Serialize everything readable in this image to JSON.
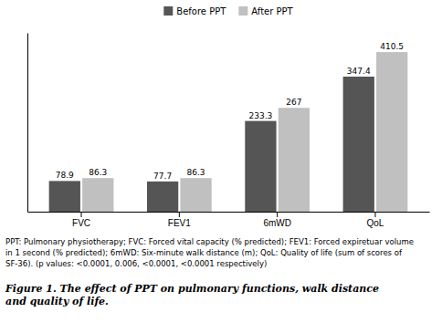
{
  "chart_data": {
    "type": "bar",
    "title": "Figure 1.  The effect of PPT on pulmonary functions, walk distance\nand quality of life.",
    "categories": [
      "FVC",
      "FEV1",
      "6mWD",
      "QoL"
    ],
    "series": [
      {
        "name": "Before PPT",
        "color": "#555555",
        "values": [
          78.9,
          77.7,
          233.3,
          347.4
        ]
      },
      {
        "name": "After PPT",
        "color": "#c0c0c0",
        "values": [
          86.3,
          86.3,
          267,
          410.5
        ]
      }
    ],
    "ylim": [
      0,
      460
    ],
    "data_labels": true,
    "tick_labels": "x",
    "legend": "top",
    "annotations": [
      "PPT: Pulmonary physiotherapy; FVC: Forced vital capacity (% predicted); FEV1: Forced expiretuar volume",
      "in 1 second (% predicted); 6mWD: Six-minute walk distance (m); QoL: Quality of life (sum of scores of",
      "SF-36). (p values: <0.0001, 0.006, <0.0001, <0.0001 respectively)"
    ]
  }
}
